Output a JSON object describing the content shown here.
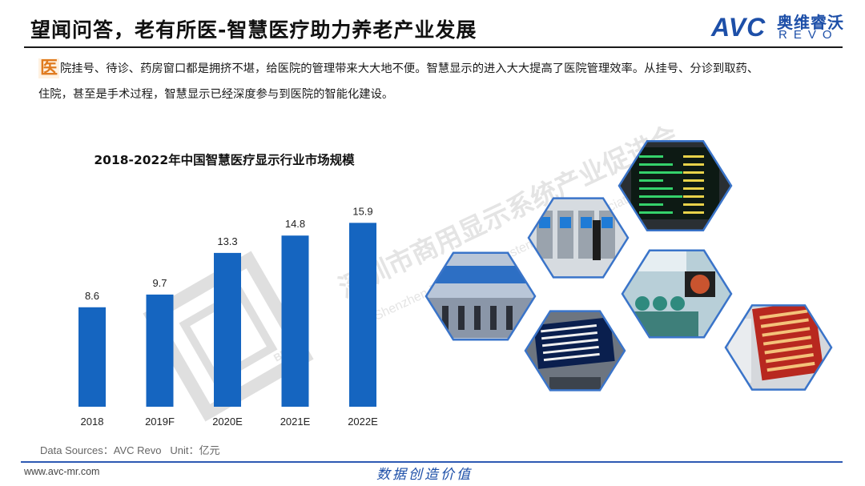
{
  "header": {
    "title": "望闻问答，老有所医-智慧医疗助力养老产业发展",
    "logo": {
      "brand": "AVC",
      "cn": "奥维睿沃",
      "en": "REVO"
    }
  },
  "intro": {
    "lead_char": "医",
    "line1": "院挂号、待诊、药房窗口都是拥挤不堪，给医院的管理带来大大地不便。智慧显示的进入大大提高了医院管理效率。从挂号、分诊到取药、",
    "line2": "住院，甚至是手术过程，智慧显示已经深度参与到医院的智能化建设。"
  },
  "watermark": {
    "cn": "深圳市商用显示系统产业促进会",
    "en": "Shenzhen B2B Display System Industry Association",
    "badge": "BDSA"
  },
  "chart_data": {
    "type": "bar",
    "title": "2018-2022年中国智慧医疗显示行业市场规模",
    "categories": [
      "2018",
      "2019F",
      "2020E",
      "2021E",
      "2022E"
    ],
    "values": [
      8.6,
      9.7,
      13.3,
      14.8,
      15.9
    ],
    "value_labels": [
      "8.6",
      "9.7",
      "13.3",
      "14.8",
      "15.9"
    ],
    "ylim": [
      0,
      18
    ],
    "grid": false,
    "bar_color": "#1565c0"
  },
  "source": {
    "text": "Data Sources：AVC Revo",
    "unit": "Unit：亿元"
  },
  "footer": {
    "url": "www.avc-mr.com",
    "slogan": "数据创造价值"
  },
  "colors": {
    "accent_blue": "#1d4fa8",
    "lead_orange": "#e07b1f",
    "hex_frame": "#3a74c9"
  },
  "photos": [
    {
      "name": "photo-hospital-hall-counters"
    },
    {
      "name": "photo-self-service-kiosks"
    },
    {
      "name": "photo-led-info-board-green"
    },
    {
      "name": "photo-queue-display-screen"
    },
    {
      "name": "photo-surgery-room-monitors"
    },
    {
      "name": "photo-pharmacy-red-display"
    }
  ]
}
